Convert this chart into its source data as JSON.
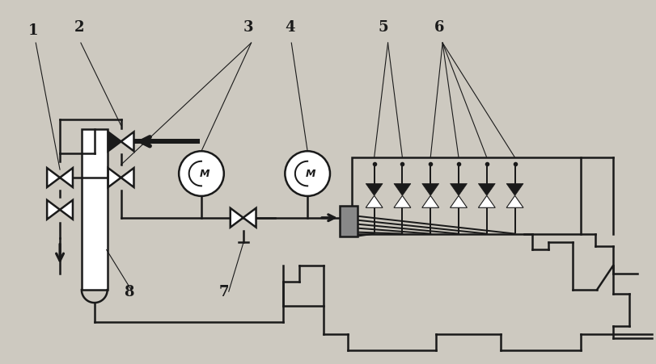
{
  "bg_color": "#cdc9c0",
  "line_color": "#1a1a1a",
  "line_width": 1.8,
  "fig_width": 8.11,
  "fig_height": 4.51
}
